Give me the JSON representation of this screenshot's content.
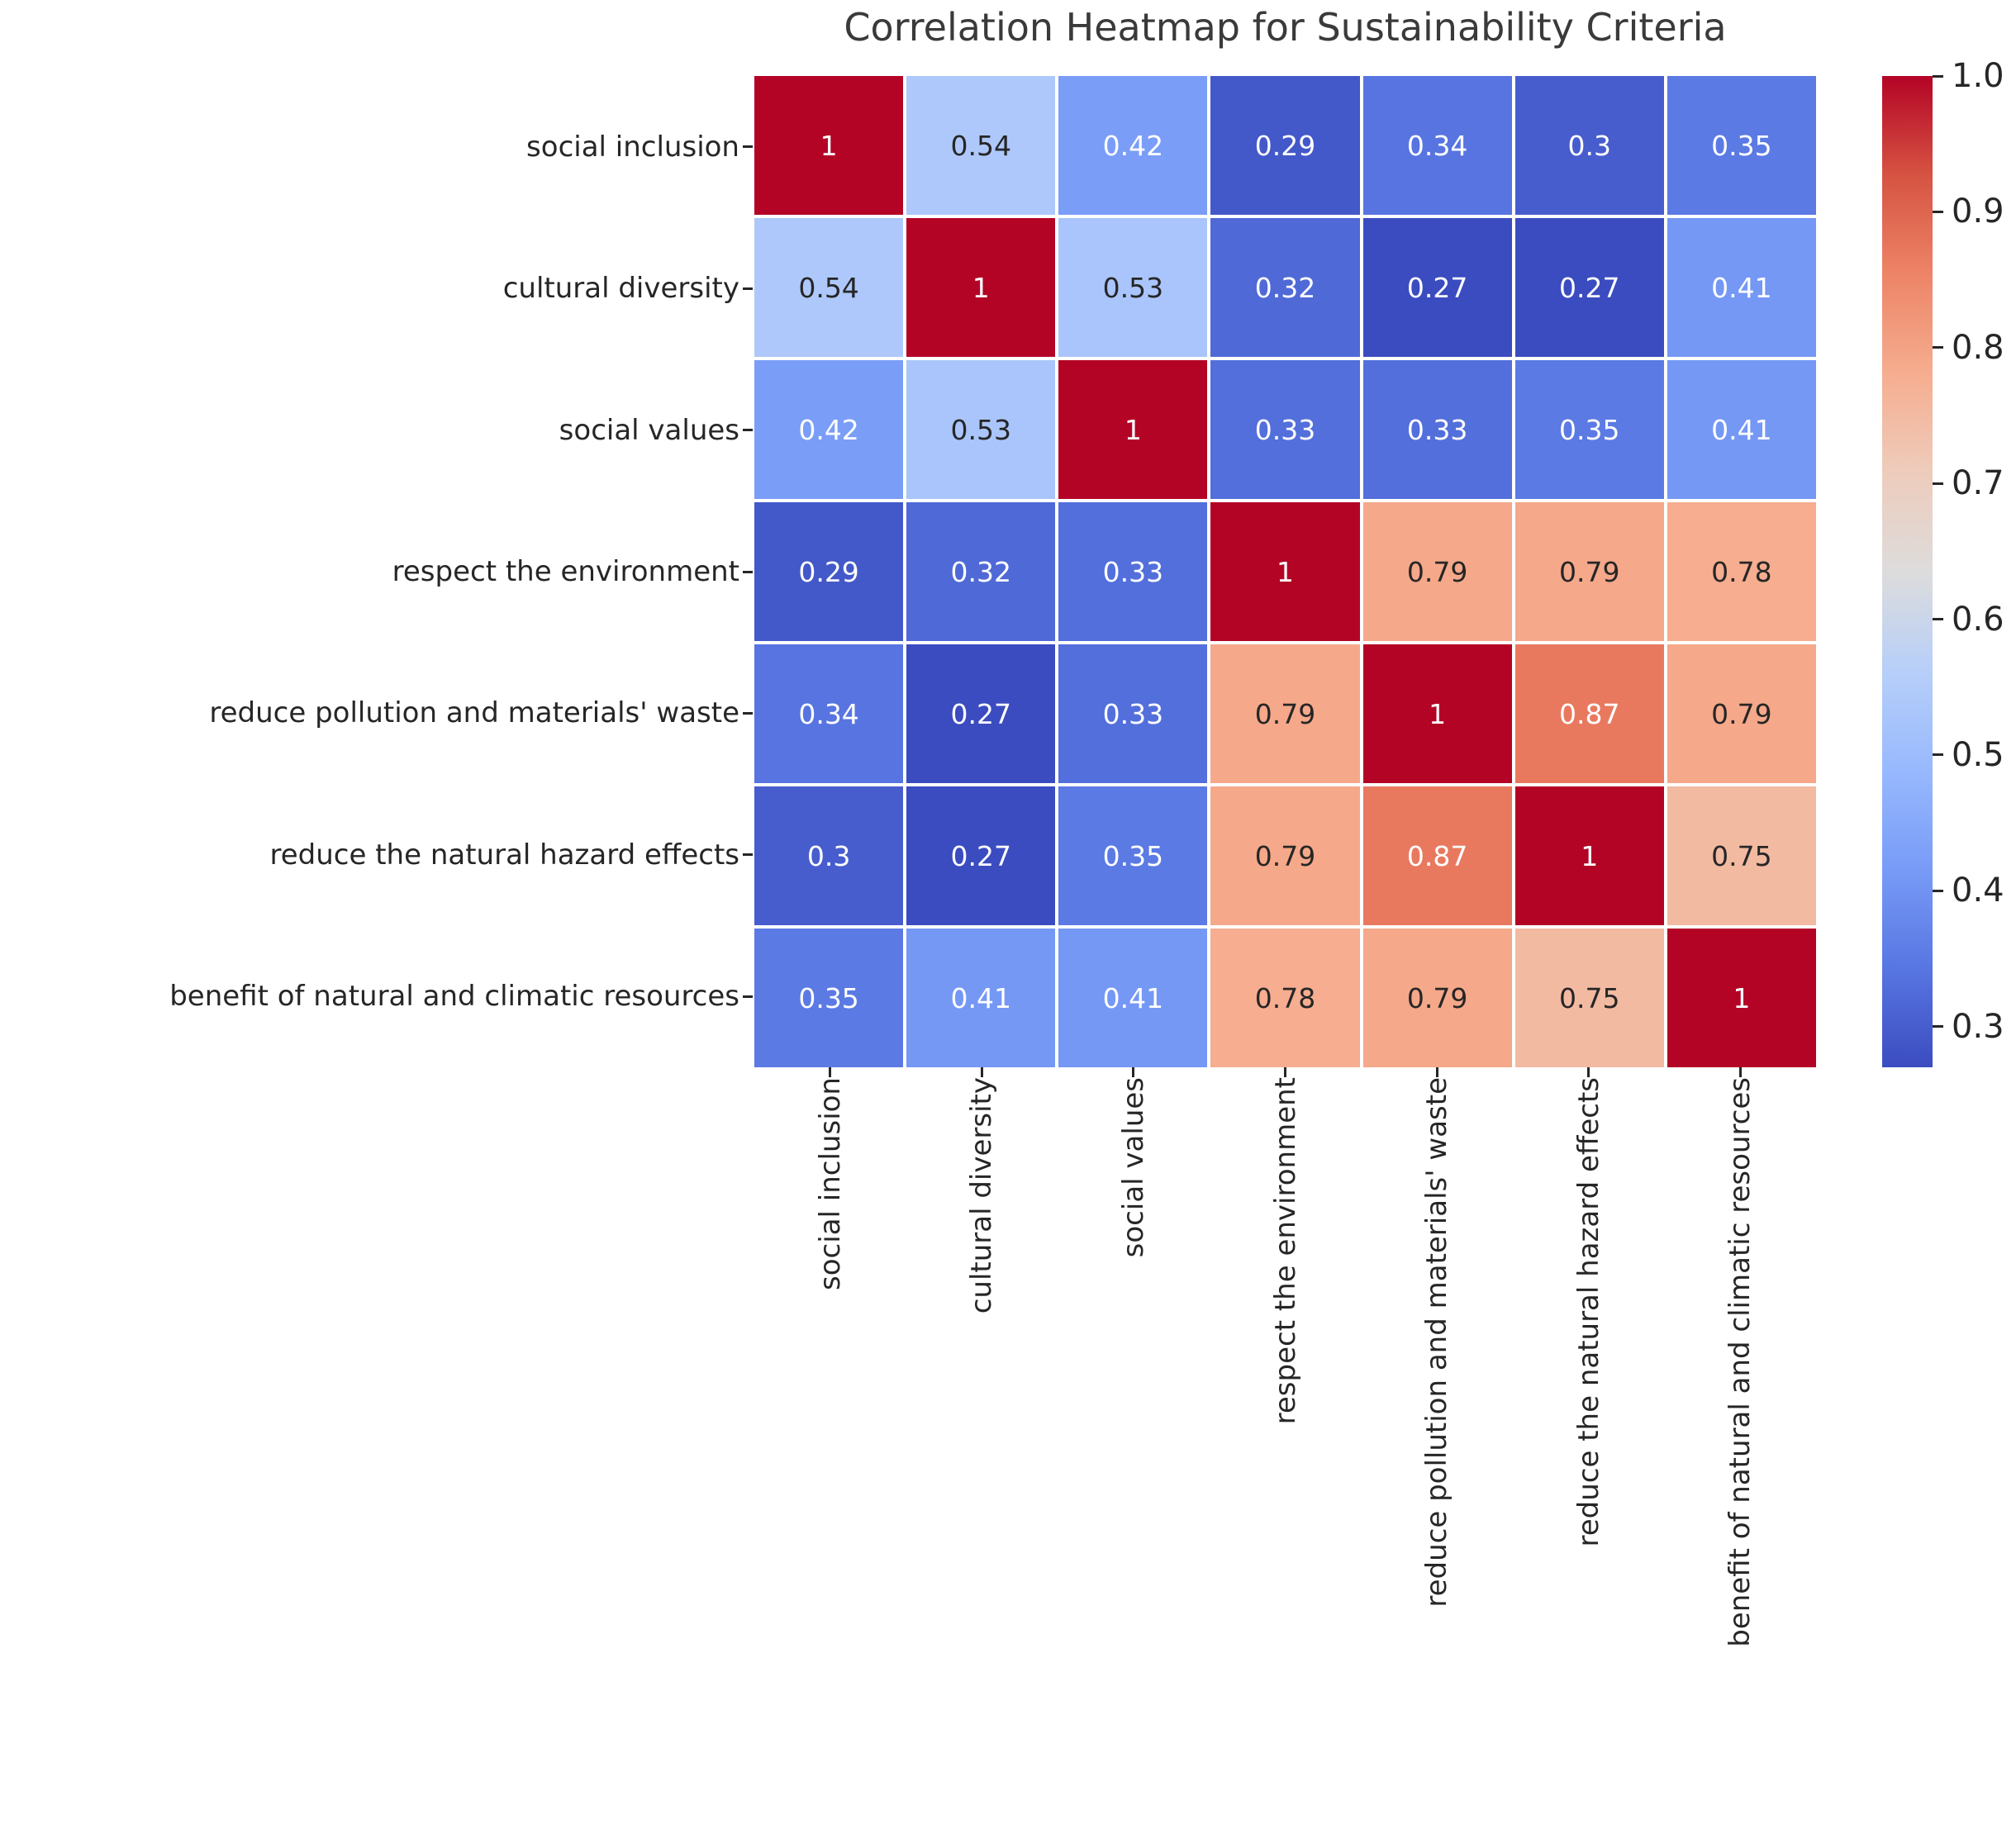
{
  "chart_data": {
    "type": "heatmap",
    "title": "Correlation Heatmap for Sustainability Criteria",
    "categories": [
      "social inclusion",
      "cultural diversity",
      "social values",
      "respect the environment",
      "reduce pollution and materials' waste",
      "reduce the natural hazard effects",
      "benefit of natural and climatic resources"
    ],
    "matrix": [
      [
        1,
        0.54,
        0.42,
        0.29,
        0.34,
        0.3,
        0.35
      ],
      [
        0.54,
        1,
        0.53,
        0.32,
        0.27,
        0.27,
        0.41
      ],
      [
        0.42,
        0.53,
        1,
        0.33,
        0.33,
        0.35,
        0.41
      ],
      [
        0.29,
        0.32,
        0.33,
        1,
        0.79,
        0.79,
        0.78
      ],
      [
        0.34,
        0.27,
        0.33,
        0.79,
        1,
        0.87,
        0.79
      ],
      [
        0.3,
        0.27,
        0.35,
        0.79,
        0.87,
        1,
        0.75
      ],
      [
        0.35,
        0.41,
        0.41,
        0.78,
        0.79,
        0.75,
        1
      ]
    ],
    "vmin": 0.27,
    "vmax": 1.0,
    "colorbar_tick_labels": [
      "1.0",
      "0.9",
      "0.8",
      "0.7",
      "0.6",
      "0.5",
      "0.4",
      "0.3"
    ],
    "colormap": {
      "name": "coolwarm",
      "stops": [
        {
          "t": 0.0,
          "color": "#3b4cc0"
        },
        {
          "t": 0.1,
          "color": "#5876e2"
        },
        {
          "t": 0.2,
          "color": "#789bf7"
        },
        {
          "t": 0.3,
          "color": "#98b9fe"
        },
        {
          "t": 0.4,
          "color": "#b7cff9"
        },
        {
          "t": 0.5,
          "color": "#dddcdc"
        },
        {
          "t": 0.6,
          "color": "#eeccbc"
        },
        {
          "t": 0.7,
          "color": "#f6ad8f"
        },
        {
          "t": 0.8,
          "color": "#ed8467"
        },
        {
          "t": 0.9,
          "color": "#d65342"
        },
        {
          "t": 1.0,
          "color": "#b40426"
        }
      ]
    },
    "annotation_colors": {
      "on_dark": "#ffffff",
      "on_light": "#262626"
    },
    "cell_gap_color": "#ffffff",
    "grid_on": false,
    "legend_position": "right-colorbar"
  }
}
